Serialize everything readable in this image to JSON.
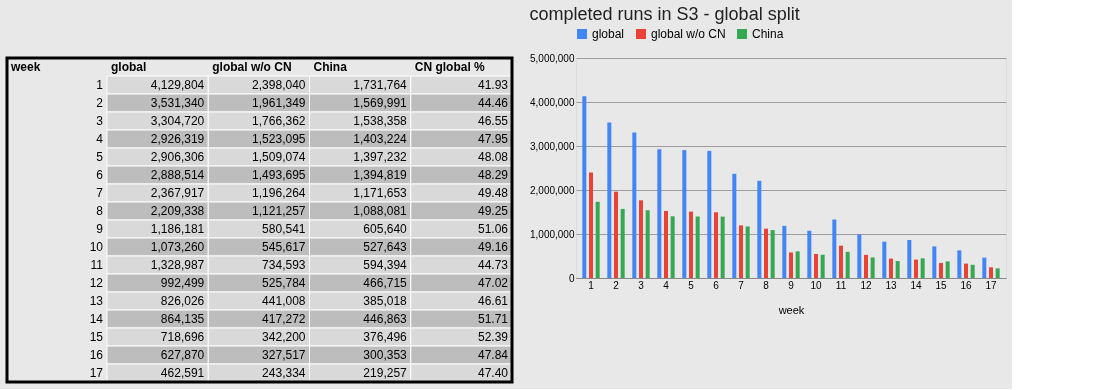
{
  "chart_data": [
    {
      "type": "heatmap",
      "ylabel": "week",
      "categories": [
        "global",
        "global w/o CN",
        "China",
        "CN global %"
      ],
      "y_categories": [
        "1",
        "2",
        "3",
        "4",
        "5",
        "6",
        "7",
        "8",
        "9",
        "10",
        "11",
        "12",
        "13",
        "14",
        "15",
        "16",
        "17"
      ],
      "cells": [
        [
          4129804,
          2398040,
          1731764,
          41.93
        ],
        [
          3531340,
          1961349,
          1569991,
          44.46
        ],
        [
          3304720,
          1766362,
          1538358,
          46.55
        ],
        [
          2926319,
          1523095,
          1403224,
          47.95
        ],
        [
          2906306,
          1509074,
          1397232,
          48.08
        ],
        [
          2888514,
          1493695,
          1394819,
          48.29
        ],
        [
          2367917,
          1196264,
          1171653,
          49.48
        ],
        [
          2209338,
          1121257,
          1088081,
          49.25
        ],
        [
          1186181,
          580541,
          605640,
          51.06
        ],
        [
          1073260,
          545617,
          527643,
          49.16
        ],
        [
          1328987,
          734593,
          594394,
          44.73
        ],
        [
          992499,
          525784,
          466715,
          47.02
        ],
        [
          826026,
          441008,
          385018,
          46.61
        ],
        [
          864135,
          417272,
          446863,
          51.71
        ],
        [
          718696,
          342200,
          376496,
          52.39
        ],
        [
          627870,
          327517,
          300353,
          47.84
        ],
        [
          462591,
          243334,
          219257,
          47.4
        ]
      ],
      "cell_labels": [
        [
          "4,129,804",
          "2,398,040",
          "1,731,764",
          "41.93"
        ],
        [
          "3,531,340",
          "1,961,349",
          "1,569,991",
          "44.46"
        ],
        [
          "3,304,720",
          "1,766,362",
          "1,538,358",
          "46.55"
        ],
        [
          "2,926,319",
          "1,523,095",
          "1,403,224",
          "47.95"
        ],
        [
          "2,906,306",
          "1,509,074",
          "1,397,232",
          "48.08"
        ],
        [
          "2,888,514",
          "1,493,695",
          "1,394,819",
          "48.29"
        ],
        [
          "2,367,917",
          "1,196,264",
          "1,171,653",
          "49.48"
        ],
        [
          "2,209,338",
          "1,121,257",
          "1,088,081",
          "49.25"
        ],
        [
          "1,186,181",
          "580,541",
          "605,640",
          "51.06"
        ],
        [
          "1,073,260",
          "545,617",
          "527,643",
          "49.16"
        ],
        [
          "1,328,987",
          "734,593",
          "594,394",
          "44.73"
        ],
        [
          "992,499",
          "525,784",
          "466,715",
          "47.02"
        ],
        [
          "826,026",
          "441,008",
          "385,018",
          "46.61"
        ],
        [
          "864,135",
          "417,272",
          "446,863",
          "51.71"
        ],
        [
          "718,696",
          "342,200",
          "376,496",
          "52.39"
        ],
        [
          "627,870",
          "327,517",
          "300,353",
          "47.84"
        ],
        [
          "462,591",
          "243,334",
          "219,257",
          "47.40"
        ]
      ]
    },
    {
      "type": "bar",
      "title": "completed runs in S3 - global split",
      "xlabel": "week",
      "categories": [
        "1",
        "2",
        "3",
        "4",
        "5",
        "6",
        "7",
        "8",
        "9",
        "10",
        "11",
        "12",
        "13",
        "14",
        "15",
        "16",
        "17"
      ],
      "series": [
        {
          "name": "global",
          "color": "#4285f4",
          "values": [
            4129804,
            3531340,
            3304720,
            2926319,
            2906306,
            2888514,
            2367917,
            2209338,
            1186181,
            1073260,
            1328987,
            992499,
            826026,
            864135,
            718696,
            627870,
            462591
          ]
        },
        {
          "name": "global w/o CN",
          "color": "#ea4335",
          "values": [
            2398040,
            1961349,
            1766362,
            1523095,
            1509074,
            1493695,
            1196264,
            1121257,
            580541,
            545617,
            734593,
            525784,
            441008,
            417272,
            342200,
            327517,
            243334
          ]
        },
        {
          "name": "China",
          "color": "#34a853",
          "values": [
            1731764,
            1569991,
            1538358,
            1403224,
            1397232,
            1394819,
            1171653,
            1088081,
            605640,
            527643,
            594394,
            466715,
            385018,
            446863,
            376496,
            300353,
            219257
          ]
        }
      ],
      "ylim": [
        0,
        5000000
      ],
      "yticks": [
        {
          "value": 0,
          "label": "0"
        },
        {
          "value": 1000000,
          "label": "1,000,000"
        },
        {
          "value": 2000000,
          "label": "2,000,000"
        },
        {
          "value": 3000000,
          "label": "3,000,000"
        },
        {
          "value": 4000000,
          "label": "4,000,000"
        },
        {
          "value": 5000000,
          "label": "5,000,000"
        }
      ],
      "grid": "y",
      "legend": "top"
    }
  ]
}
